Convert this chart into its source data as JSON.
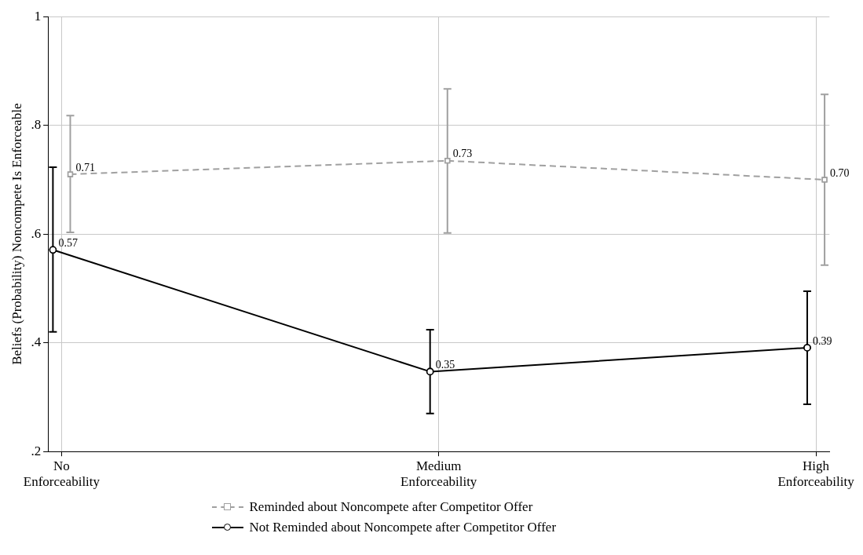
{
  "chart_data": {
    "type": "line",
    "ylabel": "Beliefs (Probability) Noncompete Is Enforceable",
    "categories": [
      "No Enforceability",
      "Medium Enforceability",
      "High Enforceability"
    ],
    "series": [
      {
        "name": "Reminded about Noncompete after Competitor Offer",
        "color": "#a0a0a0",
        "values": [
          0.71,
          0.735,
          0.7
        ],
        "errors": [
          [
            0.603,
            0.818
          ],
          [
            0.602,
            0.867
          ],
          [
            0.543,
            0.857
          ]
        ],
        "value_labels": [
          "0.71",
          "0.73",
          "0.70"
        ],
        "marker": "square",
        "line_style": "dashed"
      },
      {
        "name": "Not Reminded about Noncompete after Competitor Offer",
        "color": "#000000",
        "values": [
          0.571,
          0.347,
          0.391
        ],
        "errors": [
          [
            0.42,
            0.723
          ],
          [
            0.27,
            0.424
          ],
          [
            0.287,
            0.495
          ]
        ],
        "value_labels": [
          "0.57",
          "0.35",
          "0.39"
        ],
        "marker": "circle",
        "line_style": "solid"
      }
    ],
    "ylim": [
      0.2,
      1
    ],
    "yticks": [
      {
        "value": 0.2,
        "label": ".2"
      },
      {
        "value": 0.4,
        "label": ".4"
      },
      {
        "value": 0.6,
        "label": ".6"
      },
      {
        "value": 0.8,
        "label": ".8"
      },
      1
    ],
    "grid": true,
    "legend": "bottom"
  }
}
